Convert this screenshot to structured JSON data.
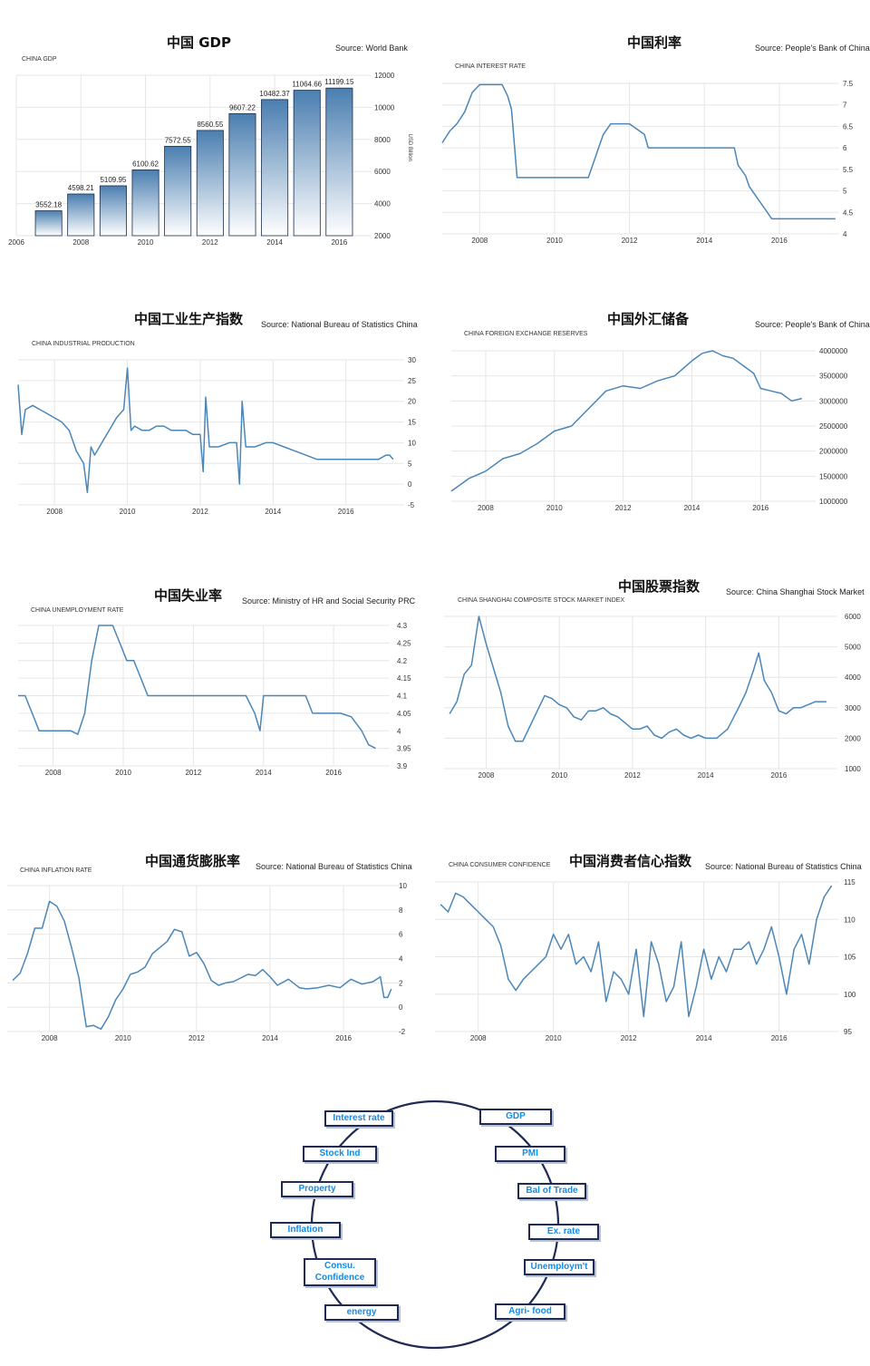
{
  "charts": [
    {
      "title": "中国 GDP",
      "source": "Source: World Bank",
      "subtitle": "CHINA GDP",
      "unit": "USD Billion"
    },
    {
      "title": "中国利率",
      "source": "Source: People's Bank of China",
      "subtitle": "CHINA INTEREST RATE"
    },
    {
      "title": "中国工业生产指数",
      "source": "Source: National Bureau of Statistics China",
      "subtitle": "CHINA INDUSTRIAL PRODUCTION"
    },
    {
      "title": "中国外汇储备",
      "source": "Source: People's Bank of China",
      "subtitle": "CHINA FOREIGN EXCHANGE RESERVES"
    },
    {
      "title": "中国失业率",
      "source": "Source: Ministry of HR and Social Security PRC",
      "subtitle": "CHINA UNEMPLOYMENT RATE"
    },
    {
      "title": "中国股票指数",
      "source": "Source: China Shanghai Stock Market",
      "subtitle": "CHINA SHANGHAI COMPOSITE STOCK MARKET INDEX"
    },
    {
      "title": "中国通货膨胀率",
      "source": "Source: National Bureau of Statistics China",
      "subtitle": "CHINA INFLATION RATE"
    },
    {
      "title": "中国消费者信心指数",
      "source": "Source: National Bureau of Statistics China",
      "subtitle": "CHINA CONSUMER CONFIDENCE"
    }
  ],
  "chart_data": [
    {
      "type": "bar",
      "x": [
        2007,
        2008,
        2009,
        2010,
        2011,
        2012,
        2013,
        2014,
        2015,
        2016
      ],
      "values": [
        3552.18,
        4598.21,
        5109.95,
        6100.62,
        7572.55,
        8560.55,
        9607.22,
        10482.37,
        11064.66,
        11199.15
      ],
      "xticks": [
        "2006",
        "2008",
        "2010",
        "2012",
        "2014",
        "2016"
      ],
      "xlim": [
        2006,
        2017
      ],
      "ylim": [
        2000,
        12000
      ],
      "yticks": [
        "2000",
        "4000",
        "6000",
        "8000",
        "10000",
        "12000"
      ],
      "ylabel": "USD Billion",
      "grid": true
    },
    {
      "type": "line",
      "x": [
        2007.0,
        2007.2,
        2007.4,
        2007.6,
        2007.8,
        2008.0,
        2008.3,
        2008.6,
        2008.75,
        2008.85,
        2009.0,
        2010.0,
        2010.9,
        2011.0,
        2011.1,
        2011.2,
        2011.3,
        2011.5,
        2011.6,
        2012.0,
        2012.4,
        2012.5,
        2013.0,
        2014.0,
        2014.8,
        2014.9,
        2015.1,
        2015.2,
        2015.4,
        2015.6,
        2015.8,
        2016.0,
        2017.5
      ],
      "y": [
        6.12,
        6.39,
        6.57,
        6.84,
        7.29,
        7.47,
        7.47,
        7.47,
        7.2,
        6.9,
        5.31,
        5.31,
        5.31,
        5.56,
        5.81,
        6.06,
        6.31,
        6.56,
        6.56,
        6.56,
        6.31,
        6.0,
        6.0,
        6.0,
        6.0,
        5.6,
        5.35,
        5.1,
        4.85,
        4.6,
        4.35,
        4.35,
        4.35
      ],
      "xticks": [
        "2008",
        "2010",
        "2012",
        "2014",
        "2016"
      ],
      "xlim": [
        2007.0,
        2017.6
      ],
      "ylim": [
        4,
        7.5
      ],
      "yticks": [
        "4",
        "4.5",
        "5",
        "5.5",
        "6",
        "6.5",
        "7",
        "7.5"
      ],
      "grid": true
    },
    {
      "type": "line",
      "x": [
        2007.0,
        2007.1,
        2007.2,
        2007.4,
        2007.6,
        2007.8,
        2008.0,
        2008.2,
        2008.4,
        2008.6,
        2008.8,
        2008.9,
        2009.0,
        2009.1,
        2009.3,
        2009.5,
        2009.7,
        2009.9,
        2010.0,
        2010.1,
        2010.2,
        2010.4,
        2010.6,
        2010.8,
        2011.0,
        2011.2,
        2011.4,
        2011.6,
        2011.8,
        2012.0,
        2012.08,
        2012.15,
        2012.25,
        2012.5,
        2012.8,
        2013.0,
        2013.08,
        2013.15,
        2013.25,
        2013.5,
        2013.8,
        2014.0,
        2014.3,
        2014.6,
        2014.9,
        2015.2,
        2015.5,
        2015.8,
        2016.0,
        2016.3,
        2016.6,
        2016.9,
        2017.1,
        2017.2,
        2017.3
      ],
      "y": [
        24,
        12,
        18,
        19,
        18,
        17,
        16,
        15,
        13,
        8,
        5,
        -2,
        9,
        7,
        10,
        13,
        16,
        18,
        28,
        13,
        14,
        13,
        13,
        14,
        14,
        13,
        13,
        13,
        12,
        12,
        3,
        21,
        9,
        9,
        10,
        10,
        0,
        20,
        9,
        9,
        10,
        10,
        9,
        8,
        7,
        6,
        6,
        6,
        6,
        6,
        6,
        6,
        7,
        7,
        6
      ],
      "xticks": [
        "2008",
        "2010",
        "2012",
        "2014",
        "2016"
      ],
      "xlim": [
        2007.0,
        2017.6
      ],
      "ylim": [
        -5,
        30
      ],
      "yticks": [
        "-5",
        "0",
        "5",
        "10",
        "15",
        "20",
        "25",
        "30"
      ],
      "grid": true
    },
    {
      "type": "line",
      "x": [
        2007.0,
        2007.5,
        2008.0,
        2008.5,
        2009.0,
        2009.5,
        2010.0,
        2010.5,
        2011.0,
        2011.5,
        2012.0,
        2012.5,
        2013.0,
        2013.5,
        2014.0,
        2014.3,
        2014.6,
        2014.9,
        2015.2,
        2015.5,
        2015.8,
        2016.0,
        2016.3,
        2016.6,
        2016.9,
        2017.2
      ],
      "y": [
        1200000,
        1450000,
        1600000,
        1850000,
        1950000,
        2150000,
        2400000,
        2500000,
        2850000,
        3200000,
        3300000,
        3250000,
        3400000,
        3500000,
        3800000,
        3950000,
        4000000,
        3900000,
        3850000,
        3700000,
        3550000,
        3250000,
        3200000,
        3150000,
        3000000,
        3050000
      ],
      "xticks": [
        "2008",
        "2010",
        "2012",
        "2014",
        "2016"
      ],
      "xlim": [
        2007.0,
        2017.6
      ],
      "ylim": [
        1000000,
        4000000
      ],
      "yticks": [
        "1000000",
        "1500000",
        "2000000",
        "2500000",
        "3000000",
        "3500000",
        "4000000"
      ],
      "grid": true
    },
    {
      "type": "line",
      "x": [
        2007.0,
        2007.2,
        2007.4,
        2007.6,
        2008.0,
        2008.5,
        2008.7,
        2008.9,
        2009.1,
        2009.3,
        2009.5,
        2009.7,
        2009.9,
        2010.1,
        2010.3,
        2010.5,
        2010.7,
        2010.9,
        2011.5,
        2012.0,
        2012.5,
        2013.0,
        2013.5,
        2013.75,
        2013.9,
        2014.0,
        2014.5,
        2015.0,
        2015.2,
        2015.4,
        2015.6,
        2015.9,
        2016.2,
        2016.5,
        2016.8,
        2017.0,
        2017.2
      ],
      "y": [
        4.1,
        4.1,
        4.05,
        4.0,
        4.0,
        4.0,
        3.99,
        4.05,
        4.2,
        4.3,
        4.3,
        4.3,
        4.25,
        4.2,
        4.2,
        4.15,
        4.1,
        4.1,
        4.1,
        4.1,
        4.1,
        4.1,
        4.1,
        4.05,
        4.0,
        4.1,
        4.1,
        4.1,
        4.1,
        4.05,
        4.05,
        4.05,
        4.05,
        4.04,
        4.0,
        3.96,
        3.95
      ],
      "xticks": [
        "2008",
        "2010",
        "2012",
        "2014",
        "2016"
      ],
      "xlim": [
        2007.0,
        2017.6
      ],
      "ylim": [
        3.9,
        4.3
      ],
      "yticks": [
        "3.9",
        "3.95",
        "4",
        "4.05",
        "4.1",
        "4.15",
        "4.2",
        "4.25",
        "4.3"
      ],
      "grid": true
    },
    {
      "type": "line",
      "x": [
        2007.0,
        2007.2,
        2007.4,
        2007.6,
        2007.8,
        2008.0,
        2008.2,
        2008.4,
        2008.6,
        2008.8,
        2009.0,
        2009.2,
        2009.4,
        2009.6,
        2009.8,
        2010.0,
        2010.2,
        2010.4,
        2010.6,
        2010.8,
        2011.0,
        2011.2,
        2011.4,
        2011.6,
        2011.8,
        2012.0,
        2012.2,
        2012.4,
        2012.6,
        2012.8,
        2013.0,
        2013.2,
        2013.4,
        2013.6,
        2013.8,
        2014.0,
        2014.3,
        2014.6,
        2014.9,
        2015.1,
        2015.3,
        2015.45,
        2015.6,
        2015.8,
        2016.0,
        2016.2,
        2016.4,
        2016.6,
        2016.8,
        2017.0,
        2017.3
      ],
      "y": [
        2800,
        3200,
        4100,
        4400,
        6000,
        5100,
        4300,
        3500,
        2400,
        1900,
        1900,
        2400,
        2900,
        3400,
        3300,
        3100,
        3000,
        2700,
        2600,
        2900,
        2900,
        3000,
        2800,
        2700,
        2500,
        2300,
        2300,
        2400,
        2100,
        2000,
        2200,
        2300,
        2100,
        2000,
        2100,
        2000,
        2000,
        2300,
        3000,
        3500,
        4200,
        4800,
        3900,
        3500,
        2900,
        2800,
        3000,
        3000,
        3100,
        3200,
        3200
      ],
      "xticks": [
        "2008",
        "2010",
        "2012",
        "2014",
        "2016"
      ],
      "xlim": [
        2006.85,
        2017.6
      ],
      "ylim": [
        1000,
        6000
      ],
      "yticks": [
        "1000",
        "2000",
        "3000",
        "4000",
        "5000",
        "6000"
      ],
      "grid": true
    },
    {
      "type": "line",
      "x": [
        2007.0,
        2007.2,
        2007.4,
        2007.6,
        2007.8,
        2008.0,
        2008.2,
        2008.4,
        2008.6,
        2008.8,
        2009.0,
        2009.2,
        2009.4,
        2009.6,
        2009.8,
        2010.0,
        2010.2,
        2010.4,
        2010.6,
        2010.8,
        2011.0,
        2011.2,
        2011.4,
        2011.6,
        2011.8,
        2012.0,
        2012.2,
        2012.4,
        2012.6,
        2012.8,
        2013.0,
        2013.2,
        2013.4,
        2013.6,
        2013.8,
        2014.0,
        2014.2,
        2014.5,
        2014.8,
        2015.0,
        2015.3,
        2015.6,
        2015.9,
        2016.2,
        2016.5,
        2016.8,
        2017.0,
        2017.1,
        2017.2,
        2017.3
      ],
      "y": [
        2.2,
        2.8,
        4.4,
        6.5,
        6.5,
        8.7,
        8.3,
        7.1,
        4.9,
        2.4,
        -1.6,
        -1.5,
        -1.8,
        -0.8,
        0.6,
        1.5,
        2.7,
        2.9,
        3.3,
        4.4,
        4.9,
        5.4,
        6.4,
        6.2,
        4.2,
        4.5,
        3.6,
        2.2,
        1.8,
        2.0,
        2.1,
        2.4,
        2.7,
        2.6,
        3.1,
        2.5,
        1.8,
        2.3,
        1.6,
        1.5,
        1.6,
        1.8,
        1.6,
        2.3,
        1.9,
        2.1,
        2.5,
        0.8,
        0.8,
        1.5
      ],
      "xticks": [
        "2008",
        "2010",
        "2012",
        "2014",
        "2016"
      ],
      "xlim": [
        2006.85,
        2017.6
      ],
      "ylim": [
        -2,
        10
      ],
      "yticks": [
        "-2",
        "0",
        "2",
        "4",
        "6",
        "8",
        "10"
      ],
      "grid": true
    },
    {
      "type": "line",
      "x": [
        2007.0,
        2007.2,
        2007.4,
        2007.6,
        2007.8,
        2008.0,
        2008.2,
        2008.4,
        2008.6,
        2008.8,
        2009.0,
        2009.2,
        2009.4,
        2009.6,
        2009.8,
        2010.0,
        2010.2,
        2010.4,
        2010.6,
        2010.8,
        2011.0,
        2011.2,
        2011.4,
        2011.6,
        2011.8,
        2012.0,
        2012.2,
        2012.4,
        2012.6,
        2012.8,
        2013.0,
        2013.2,
        2013.4,
        2013.6,
        2013.8,
        2014.0,
        2014.2,
        2014.4,
        2014.6,
        2014.8,
        2015.0,
        2015.2,
        2015.4,
        2015.6,
        2015.8,
        2016.0,
        2016.2,
        2016.4,
        2016.6,
        2016.8,
        2017.0,
        2017.2,
        2017.4
      ],
      "y": [
        112,
        111,
        113.5,
        113,
        112,
        111,
        110,
        109,
        106.5,
        102,
        100.5,
        102,
        103,
        104,
        105,
        108,
        106,
        108,
        104,
        105,
        103,
        107,
        99,
        103,
        102,
        100,
        106,
        97,
        107,
        104,
        99,
        101,
        107,
        97,
        101,
        106,
        102,
        105,
        103,
        106,
        106,
        107,
        104,
        106,
        109,
        105,
        100,
        106,
        108,
        104,
        110,
        113,
        114.5
      ],
      "xticks": [
        "2008",
        "2010",
        "2012",
        "2014",
        "2016"
      ],
      "xlim": [
        2006.85,
        2017.6
      ],
      "ylim": [
        95,
        115
      ],
      "yticks": [
        "95",
        "100",
        "105",
        "110",
        "115"
      ],
      "grid": true
    }
  ],
  "cycle": {
    "left": [
      "Interest rate",
      "Stock Ind",
      "Property",
      "Inflation",
      "Consu.\nConfidence",
      "energy"
    ],
    "right": [
      "GDP",
      "PMI",
      "Bal of Trade",
      "Ex. rate",
      "Unemploym't",
      "Agri- food"
    ],
    "colors": {
      "ring": "#1f2a55",
      "text": "#0f8be8",
      "box_border": "#1f2a55"
    }
  },
  "colors": {
    "line": "#4a86b8",
    "bar_top": "#4a7eb0",
    "bar_bottom": "#ffffff",
    "bar_border": "#1a2d4a",
    "grid": "#e6e6e6"
  }
}
